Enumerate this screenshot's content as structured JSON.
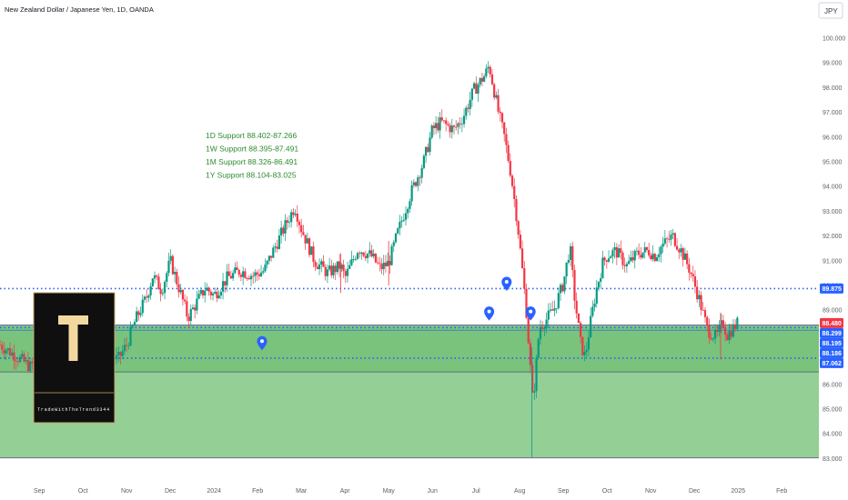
{
  "chart_data": {
    "type": "candlestick",
    "title": "New Zealand Dollar / Japanese Yen, 1D, OANDA",
    "currency": "JPY",
    "ylim": [
      83.0,
      100.0
    ],
    "y_ticks": [
      83,
      84,
      85,
      86,
      87,
      88,
      89,
      90,
      91,
      92,
      93,
      94,
      95,
      96,
      97,
      98,
      99,
      100
    ],
    "x_ticks": [
      {
        "label": "Sep",
        "t": 0.0
      },
      {
        "label": "Oct",
        "t": 1.0
      },
      {
        "label": "Nov",
        "t": 2.0
      },
      {
        "label": "Dec",
        "t": 3.0
      },
      {
        "label": "2024",
        "t": 4.0
      },
      {
        "label": "Feb",
        "t": 5.0
      },
      {
        "label": "Mar",
        "t": 6.0
      },
      {
        "label": "Apr",
        "t": 7.0
      },
      {
        "label": "May",
        "t": 8.0
      },
      {
        "label": "Jun",
        "t": 9.0
      },
      {
        "label": "Jul",
        "t": 10.0
      },
      {
        "label": "Aug",
        "t": 11.0
      },
      {
        "label": "Sep",
        "t": 12.0
      },
      {
        "label": "Oct",
        "t": 13.0
      },
      {
        "label": "Nov",
        "t": 14.0
      },
      {
        "label": "Dec",
        "t": 15.0
      },
      {
        "label": "2025",
        "t": 16.0
      },
      {
        "label": "Feb",
        "t": 17.0
      }
    ],
    "x_range": [
      -0.9,
      17.85
    ],
    "price_path": [
      [
        -0.9,
        87.6
      ],
      [
        -0.5,
        87.1
      ],
      [
        -0.2,
        86.7
      ],
      [
        0.0,
        87.2
      ],
      [
        0.3,
        86.9
      ],
      [
        0.6,
        87.4
      ],
      [
        1.0,
        87.7
      ],
      [
        1.4,
        87.3
      ],
      [
        1.8,
        87.0
      ],
      [
        2.0,
        87.6
      ],
      [
        2.2,
        88.6
      ],
      [
        2.45,
        89.5
      ],
      [
        2.6,
        90.4
      ],
      [
        2.8,
        89.8
      ],
      [
        3.0,
        91.0
      ],
      [
        3.25,
        89.6
      ],
      [
        3.4,
        88.7
      ],
      [
        3.6,
        89.3
      ],
      [
        3.8,
        89.9
      ],
      [
        4.0,
        89.6
      ],
      [
        4.3,
        90.3
      ],
      [
        4.6,
        90.6
      ],
      [
        4.9,
        90.4
      ],
      [
        5.15,
        90.6
      ],
      [
        5.3,
        91.2
      ],
      [
        5.6,
        92.3
      ],
      [
        5.85,
        93.2
      ],
      [
        6.0,
        92.3
      ],
      [
        6.3,
        91.0
      ],
      [
        6.6,
        90.5
      ],
      [
        6.9,
        90.8
      ],
      [
        7.0,
        90.3
      ],
      [
        7.3,
        91.5
      ],
      [
        7.6,
        91.2
      ],
      [
        7.8,
        90.7
      ],
      [
        8.0,
        90.9
      ],
      [
        8.2,
        92.1
      ],
      [
        8.5,
        93.7
      ],
      [
        8.8,
        95.0
      ],
      [
        9.0,
        96.3
      ],
      [
        9.2,
        96.6
      ],
      [
        9.5,
        96.3
      ],
      [
        9.7,
        96.8
      ],
      [
        9.95,
        97.9
      ],
      [
        10.2,
        98.5
      ],
      [
        10.3,
        98.9
      ],
      [
        10.5,
        97.1
      ],
      [
        10.65,
        96.0
      ],
      [
        10.8,
        94.5
      ],
      [
        10.95,
        92.5
      ],
      [
        11.05,
        90.8
      ],
      [
        11.15,
        89.0
      ],
      [
        11.25,
        86.5
      ],
      [
        11.3,
        85.2
      ],
      [
        11.45,
        88.3
      ],
      [
        11.6,
        88.6
      ],
      [
        11.8,
        89.1
      ],
      [
        12.0,
        90.1
      ],
      [
        12.15,
        91.6
      ],
      [
        12.25,
        89.6
      ],
      [
        12.4,
        87.6
      ],
      [
        12.5,
        87.1
      ],
      [
        12.6,
        88.3
      ],
      [
        12.75,
        89.8
      ],
      [
        12.9,
        90.9
      ],
      [
        13.0,
        91.2
      ],
      [
        13.2,
        91.4
      ],
      [
        13.45,
        90.8
      ],
      [
        13.7,
        91.3
      ],
      [
        13.95,
        91.4
      ],
      [
        14.1,
        91.2
      ],
      [
        14.25,
        91.6
      ],
      [
        14.5,
        92.0
      ],
      [
        14.7,
        91.4
      ],
      [
        14.9,
        90.6
      ],
      [
        15.1,
        89.5
      ],
      [
        15.3,
        88.2
      ],
      [
        15.5,
        87.9
      ],
      [
        15.65,
        88.5
      ],
      [
        15.75,
        88.0
      ],
      [
        15.9,
        88.3
      ],
      [
        16.0,
        88.5
      ]
    ],
    "horizontal_levels": [
      {
        "price": 89.875,
        "label": "89.875",
        "color": "#2962ff",
        "style": "dotted"
      },
      {
        "price": 88.299,
        "label": "88.299",
        "color": "#2962ff",
        "style": "dotted"
      },
      {
        "price": 87.062,
        "label": "87.062",
        "color": "#2962ff",
        "style": "dotted"
      },
      {
        "price": 88.195,
        "label": "88.195",
        "color": "#2962ff",
        "style": "solid"
      },
      {
        "price": 88.186,
        "label": "88.186",
        "color": "#2962ff",
        "style": "solid"
      }
    ],
    "last_price": {
      "price": 88.48,
      "label": "88.480",
      "color": "#f23645"
    },
    "zones": [
      {
        "from": 88.402,
        "to": 86.5,
        "color": "#4caf50",
        "opacity": 0.75
      },
      {
        "from": 86.5,
        "to": 83.025,
        "color": "#4caf50",
        "opacity": 0.6
      }
    ],
    "support_lines": [
      "1D Support 88.402-87.266",
      "1W Support 88.395-87.491",
      "1M Support 88.326-86.491",
      "1Y Support 88.104-83.025"
    ],
    "markers": [
      {
        "t": 10.7,
        "price": 90.0
      },
      {
        "t": 10.3,
        "price": 88.8
      },
      {
        "t": 11.25,
        "price": 88.8
      },
      {
        "t": 5.1,
        "price": 87.6
      }
    ],
    "colors": {
      "up": "#089981",
      "down": "#f23645",
      "level": "#2962ff",
      "support_text": "#2e8b2e"
    }
  },
  "logo": {
    "letter": "T",
    "caption": "TradeWithTheTrend3344"
  }
}
